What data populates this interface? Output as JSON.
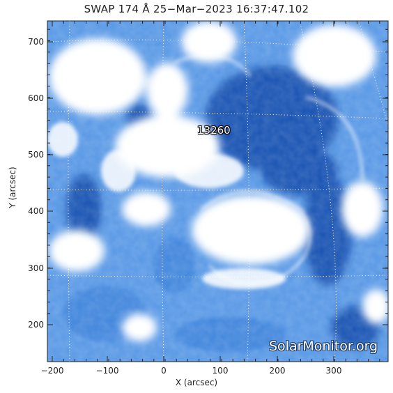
{
  "title": "SWAP 174 Å 25−Mar−2023 16:37:47.102",
  "axes": {
    "xlabel": "X (arcsec)",
    "ylabel": "Y (arcsec)",
    "x_ticks": [
      "−200",
      "−100",
      "0",
      "100",
      "200",
      "300"
    ],
    "y_ticks": [
      "200",
      "300",
      "400",
      "500",
      "600",
      "700"
    ]
  },
  "active_region_label": "13260",
  "watermark": "SolarMonitor.org",
  "colors": {
    "image_base": "#5b9ae6",
    "dark_region": "#1e56b4",
    "bright_region": "#ffffff",
    "grid": "#ffffff"
  }
}
